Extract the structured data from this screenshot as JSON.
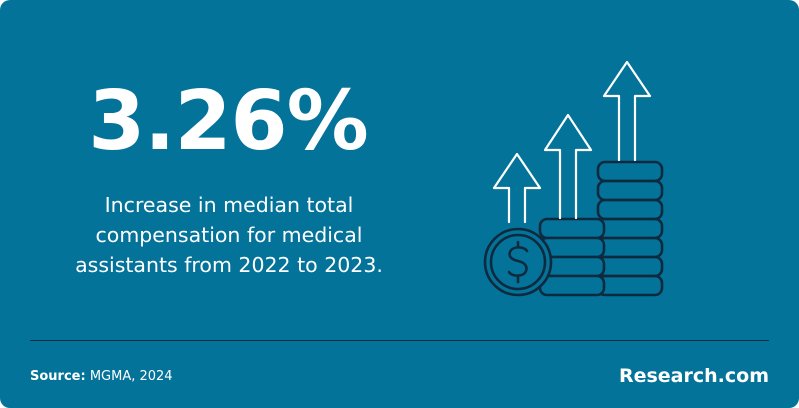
{
  "headline": {
    "value": "3.26%",
    "description_lines": [
      "Increase in median total",
      "compensation for medical",
      "assistants from 2022 to 2023."
    ]
  },
  "footer": {
    "source_label": "Source:",
    "source_text": " MGMA, 2024",
    "brand": "Research.com"
  },
  "illustration": {
    "icon": "money-growth-icon",
    "coin_symbol": "$"
  },
  "colors": {
    "background": "#04739a",
    "line_art": "#0e2a3f",
    "text": "#ffffff"
  }
}
